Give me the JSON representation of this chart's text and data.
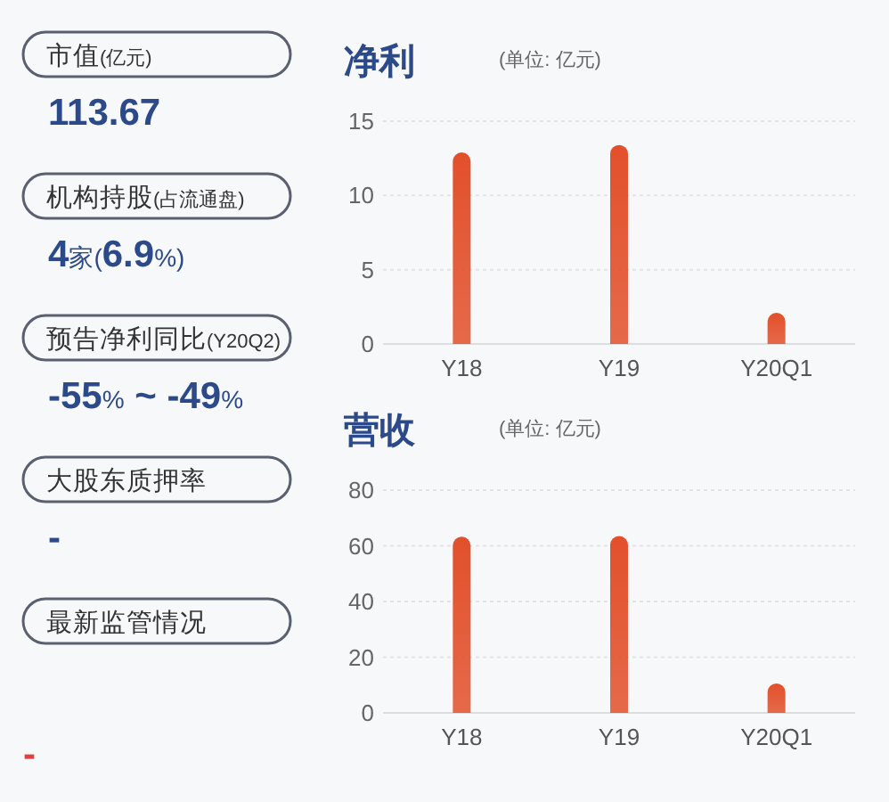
{
  "chart_data": [
    {
      "type": "other",
      "annotations": [
        "市值(亿元)",
        "113.67",
        "机构持股(占流通盘)",
        "4家(6.9%)",
        "预告净利同比(Y20Q2)",
        "-55% ~ -49%",
        "大股东质押率",
        "-",
        "最新监管情况",
        "-"
      ]
    },
    {
      "type": "bar",
      "title": "净利",
      "subtitle": "(单位: 亿元)",
      "categories": [
        "Y18",
        "Y19",
        "Y20Q1"
      ],
      "values": [
        12.9,
        13.4,
        2.1
      ],
      "color": "#e2502b",
      "ylim": [
        0,
        15
      ],
      "yticks": [
        0,
        5,
        10,
        15
      ],
      "grid": "y"
    },
    {
      "type": "bar",
      "title": "营收",
      "subtitle": "(单位: 亿元)",
      "categories": [
        "Y18",
        "Y19",
        "Y20Q1"
      ],
      "values": [
        63.3,
        63.5,
        10.6
      ],
      "color": "#e2502b",
      "ylim": [
        0,
        80
      ],
      "yticks": [
        0,
        20,
        40,
        60,
        80
      ],
      "grid": "y"
    }
  ]
}
